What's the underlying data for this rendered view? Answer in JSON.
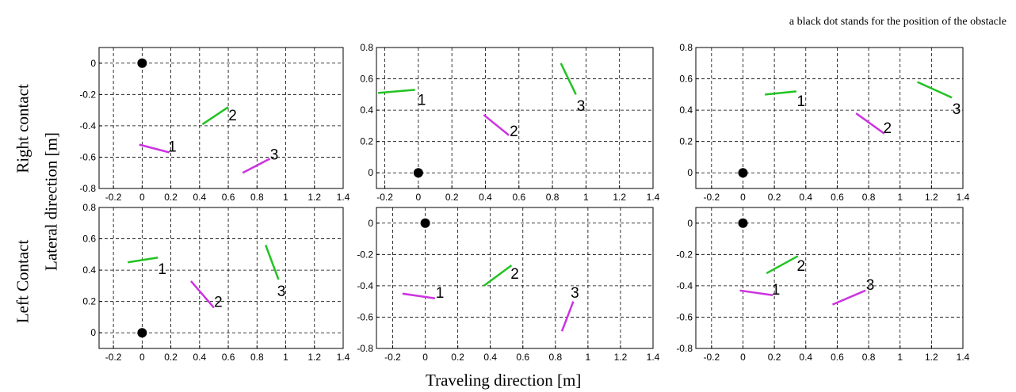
{
  "annotation": "a black dot stands for the position of the obstacle",
  "row_labels": [
    "Right contact",
    "Left Contact"
  ],
  "ylabel": "Lateral direction [m]",
  "xlabel": "Traveling direction [m]",
  "colors": {
    "green": "#22c322",
    "magenta": "#cc33e0",
    "dot": "#000000",
    "grid": "#000000"
  },
  "chart_data": [
    {
      "type": "line",
      "row": 0,
      "col": 0,
      "xlim": [
        -0.3,
        1.4
      ],
      "ylim": [
        -0.8,
        0.1
      ],
      "xticks": [
        "-0.2",
        "0",
        "0.2",
        "0.4",
        "0.6",
        "0.8",
        "1",
        "1.2",
        "1.4"
      ],
      "xtick_values": [
        -0.2,
        0,
        0.2,
        0.4,
        0.6,
        0.8,
        1,
        1.2,
        1.4
      ],
      "yticks": [
        "-0.8",
        "-0.6",
        "-0.4",
        "-0.2",
        "0"
      ],
      "ytick_values": [
        -0.8,
        -0.6,
        -0.4,
        -0.2,
        0
      ],
      "grid": true,
      "obstacle": [
        0,
        0
      ],
      "segments": [
        {
          "label": "1",
          "color": "magenta",
          "x": [
            -0.02,
            0.19
          ],
          "y": [
            -0.52,
            -0.57
          ],
          "label_at": [
            0.21,
            -0.53
          ]
        },
        {
          "label": "2",
          "color": "green",
          "x": [
            0.42,
            0.6
          ],
          "y": [
            -0.39,
            -0.28
          ],
          "label_at": [
            0.63,
            -0.33
          ]
        },
        {
          "label": "3",
          "color": "magenta",
          "x": [
            0.7,
            0.89
          ],
          "y": [
            -0.7,
            -0.61
          ],
          "label_at": [
            0.92,
            -0.58
          ]
        }
      ]
    },
    {
      "type": "line",
      "row": 0,
      "col": 1,
      "xlim": [
        -0.25,
        1.4
      ],
      "ylim": [
        -0.1,
        0.8
      ],
      "xticks": [
        "-0.2",
        "0",
        "0.2",
        "0.4",
        "0.6",
        "0.8",
        "1",
        "1.2",
        "1.4"
      ],
      "xtick_values": [
        -0.2,
        0,
        0.2,
        0.4,
        0.6,
        0.8,
        1,
        1.2,
        1.4
      ],
      "yticks": [
        "0",
        "0.2",
        "0.4",
        "0.6",
        "0.8"
      ],
      "ytick_values": [
        0,
        0.2,
        0.4,
        0.6,
        0.8
      ],
      "grid": true,
      "obstacle": [
        0,
        0
      ],
      "segments": [
        {
          "label": "1",
          "color": "green",
          "x": [
            -0.24,
            -0.02
          ],
          "y": [
            0.51,
            0.53
          ],
          "label_at": [
            0.02,
            0.47
          ]
        },
        {
          "label": "2",
          "color": "magenta",
          "x": [
            0.39,
            0.54
          ],
          "y": [
            0.37,
            0.24
          ],
          "label_at": [
            0.57,
            0.27
          ]
        },
        {
          "label": "3",
          "color": "green",
          "x": [
            0.85,
            0.94
          ],
          "y": [
            0.7,
            0.5
          ],
          "label_at": [
            0.97,
            0.43
          ]
        }
      ]
    },
    {
      "type": "line",
      "row": 0,
      "col": 2,
      "xlim": [
        -0.3,
        1.4
      ],
      "ylim": [
        -0.1,
        0.8
      ],
      "xticks": [
        "-0.2",
        "0",
        "0.2",
        "0.4",
        "0.6",
        "0.8",
        "1",
        "1.2",
        "1.4"
      ],
      "xtick_values": [
        -0.2,
        0,
        0.2,
        0.4,
        0.6,
        0.8,
        1,
        1.2,
        1.4
      ],
      "yticks": [
        "0",
        "0.2",
        "0.4",
        "0.6",
        "0.8"
      ],
      "ytick_values": [
        0,
        0.2,
        0.4,
        0.6,
        0.8
      ],
      "grid": true,
      "obstacle": [
        0,
        0
      ],
      "segments": [
        {
          "label": "1",
          "color": "green",
          "x": [
            0.14,
            0.34
          ],
          "y": [
            0.5,
            0.52
          ],
          "label_at": [
            0.37,
            0.46
          ]
        },
        {
          "label": "2",
          "color": "magenta",
          "x": [
            0.72,
            0.9
          ],
          "y": [
            0.38,
            0.25
          ],
          "label_at": [
            0.92,
            0.29
          ]
        },
        {
          "label": "3",
          "color": "green",
          "x": [
            1.11,
            1.33
          ],
          "y": [
            0.58,
            0.48
          ],
          "label_at": [
            1.36,
            0.41
          ]
        }
      ]
    },
    {
      "type": "line",
      "row": 1,
      "col": 0,
      "xlim": [
        -0.3,
        1.4
      ],
      "ylim": [
        -0.1,
        0.8
      ],
      "xticks": [
        "-0.2",
        "0",
        "0.2",
        "0.4",
        "0.6",
        "0.8",
        "1",
        "1.2",
        "1.4"
      ],
      "xtick_values": [
        -0.2,
        0,
        0.2,
        0.4,
        0.6,
        0.8,
        1,
        1.2,
        1.4
      ],
      "yticks": [
        "0",
        "0.2",
        "0.4",
        "0.6",
        "0.8"
      ],
      "ytick_values": [
        0,
        0.2,
        0.4,
        0.6,
        0.8
      ],
      "grid": true,
      "obstacle": [
        0,
        0
      ],
      "segments": [
        {
          "label": "1",
          "color": "green",
          "x": [
            -0.1,
            0.11
          ],
          "y": [
            0.45,
            0.48
          ],
          "label_at": [
            0.14,
            0.41
          ]
        },
        {
          "label": "2",
          "color": "magenta",
          "x": [
            0.34,
            0.5
          ],
          "y": [
            0.33,
            0.16
          ],
          "label_at": [
            0.53,
            0.2
          ]
        },
        {
          "label": "3",
          "color": "green",
          "x": [
            0.86,
            0.95
          ],
          "y": [
            0.56,
            0.34
          ],
          "label_at": [
            0.97,
            0.27
          ]
        }
      ]
    },
    {
      "type": "line",
      "row": 1,
      "col": 1,
      "xlim": [
        -0.3,
        1.4
      ],
      "ylim": [
        -0.8,
        0.1
      ],
      "xticks": [
        "-0.2",
        "0",
        "0.2",
        "0.4",
        "0.6",
        "0.8",
        "1",
        "1.2",
        "1.4"
      ],
      "xtick_values": [
        -0.2,
        0,
        0.2,
        0.4,
        0.6,
        0.8,
        1,
        1.2,
        1.4
      ],
      "yticks": [
        "-0.8",
        "-0.6",
        "-0.4",
        "-0.2",
        "0"
      ],
      "ytick_values": [
        -0.8,
        -0.6,
        -0.4,
        -0.2,
        0
      ],
      "grid": true,
      "obstacle": [
        0,
        0
      ],
      "segments": [
        {
          "label": "1",
          "color": "magenta",
          "x": [
            -0.14,
            0.06
          ],
          "y": [
            -0.45,
            -0.48
          ],
          "label_at": [
            0.09,
            -0.44
          ]
        },
        {
          "label": "2",
          "color": "green",
          "x": [
            0.36,
            0.53
          ],
          "y": [
            -0.4,
            -0.27
          ],
          "label_at": [
            0.55,
            -0.32
          ]
        },
        {
          "label": "3",
          "color": "magenta",
          "x": [
            0.84,
            0.91
          ],
          "y": [
            -0.69,
            -0.5
          ],
          "label_at": [
            0.92,
            -0.44
          ]
        }
      ]
    },
    {
      "type": "line",
      "row": 1,
      "col": 2,
      "xlim": [
        -0.3,
        1.4
      ],
      "ylim": [
        -0.8,
        0.1
      ],
      "xticks": [
        "-0.2",
        "0",
        "0.2",
        "0.4",
        "0.6",
        "0.8",
        "1",
        "1.2",
        "1.4"
      ],
      "xtick_values": [
        -0.2,
        0,
        0.2,
        0.4,
        0.6,
        0.8,
        1,
        1.2,
        1.4
      ],
      "yticks": [
        "-0.8",
        "-0.6",
        "-0.4",
        "-0.2",
        "0"
      ],
      "ytick_values": [
        -0.8,
        -0.6,
        -0.4,
        -0.2,
        0
      ],
      "grid": true,
      "obstacle": [
        0,
        0
      ],
      "segments": [
        {
          "label": "1",
          "color": "magenta",
          "x": [
            -0.02,
            0.19
          ],
          "y": [
            -0.43,
            -0.46
          ],
          "label_at": [
            0.21,
            -0.42
          ]
        },
        {
          "label": "2",
          "color": "green",
          "x": [
            0.15,
            0.35
          ],
          "y": [
            -0.32,
            -0.21
          ],
          "label_at": [
            0.37,
            -0.27
          ]
        },
        {
          "label": "3",
          "color": "magenta",
          "x": [
            0.57,
            0.78
          ],
          "y": [
            -0.52,
            -0.43
          ],
          "label_at": [
            0.81,
            -0.39
          ]
        }
      ]
    }
  ]
}
